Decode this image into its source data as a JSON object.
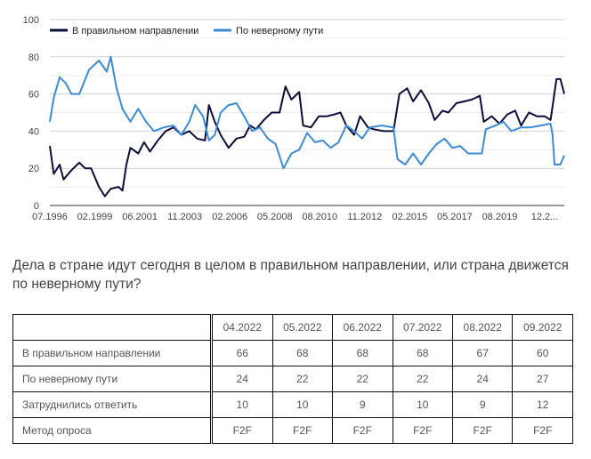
{
  "chart_data": {
    "type": "line",
    "ylim": [
      0,
      100
    ],
    "yticks": [
      "0",
      "20",
      "40",
      "60",
      "80",
      "100"
    ],
    "xtick_labels": [
      "07.1996",
      "02.1999",
      "06.2001",
      "11.2003",
      "02.2006",
      "05.2008",
      "08.2010",
      "11.2012",
      "02.2015",
      "05.2017",
      "08.2019",
      "12.2..."
    ],
    "xlim": [
      1996.5,
      2022.7
    ],
    "grid": true,
    "legend_position": "top-left",
    "series": [
      {
        "name": "В правильном направлении",
        "color": "#0d0d3a",
        "x": [
          1996.5,
          1996.7,
          1997,
          1997.2,
          1997.6,
          1998,
          1998.3,
          1998.6,
          1999,
          1999.3,
          1999.6,
          2000,
          2000.2,
          2000.4,
          2000.6,
          2001,
          2001.3,
          2001.6,
          2002,
          2002.4,
          2002.8,
          2003.2,
          2003.6,
          2004,
          2004.4,
          2004.6,
          2004.9,
          2005.2,
          2005.6,
          2006,
          2006.4,
          2006.7,
          2007,
          2007.4,
          2007.8,
          2008.2,
          2008.5,
          2008.8,
          2009.2,
          2009.4,
          2009.8,
          2010.2,
          2010.6,
          2011,
          2011.3,
          2011.6,
          2012,
          2012.3,
          2012.7,
          2013,
          2013.5,
          2014,
          2014.3,
          2014.7,
          2015,
          2015.4,
          2015.8,
          2016.1,
          2016.5,
          2016.8,
          2017.2,
          2017.6,
          2018,
          2018.4,
          2018.6,
          2019,
          2019.4,
          2019.8,
          2020.2,
          2020.5,
          2020.9,
          2021.3,
          2021.7,
          2022,
          2022.3,
          2022.5,
          2022.7
        ],
        "values": [
          32,
          17,
          22,
          14,
          19,
          23,
          20,
          20,
          10,
          5,
          9,
          10,
          8,
          22,
          31,
          28,
          34,
          29,
          35,
          40,
          42,
          38,
          40,
          36,
          35,
          54,
          45,
          38,
          31,
          36,
          37,
          43,
          41,
          46,
          50,
          50,
          64,
          57,
          61,
          43,
          42,
          48,
          48,
          49,
          50,
          43,
          38,
          48,
          42,
          41,
          40,
          40,
          60,
          63,
          56,
          62,
          55,
          46,
          51,
          50,
          55,
          56,
          57,
          59,
          45,
          48,
          44,
          49,
          51,
          43,
          50,
          48,
          48,
          46,
          68,
          68,
          60
        ]
      },
      {
        "name": "По неверному пути",
        "color": "#3d8bd4",
        "x": [
          1996.5,
          1996.7,
          1997,
          1997.3,
          1997.6,
          1998,
          1998.5,
          1999,
          1999.4,
          1999.6,
          1999.9,
          2000.2,
          2000.6,
          2001,
          2001.4,
          2001.8,
          2002.3,
          2002.8,
          2003.2,
          2003.6,
          2003.9,
          2004.3,
          2004.6,
          2004.9,
          2005.2,
          2005.6,
          2006,
          2006.4,
          2006.8,
          2007.2,
          2007.6,
          2008,
          2008.4,
          2008.8,
          2009.2,
          2009.6,
          2010,
          2010.4,
          2010.8,
          2011.2,
          2011.6,
          2012,
          2012.4,
          2012.8,
          2013.4,
          2014,
          2014.2,
          2014.6,
          2015,
          2015.4,
          2015.8,
          2016.2,
          2016.6,
          2017,
          2017.4,
          2017.8,
          2018.2,
          2018.5,
          2018.7,
          2019.2,
          2019.6,
          2020,
          2020.5,
          2021,
          2021.5,
          2022,
          2022.1,
          2022.2,
          2022.5,
          2022.7
        ],
        "values": [
          45,
          58,
          69,
          66,
          60,
          60,
          73,
          78,
          72,
          80,
          63,
          52,
          45,
          52,
          45,
          40,
          42,
          43,
          38,
          45,
          54,
          48,
          35,
          38,
          50,
          54,
          55,
          48,
          40,
          42,
          36,
          33,
          20,
          28,
          30,
          39,
          34,
          35,
          31,
          34,
          43,
          40,
          36,
          42,
          43,
          42,
          25,
          22,
          28,
          22,
          28,
          33,
          36,
          31,
          32,
          28,
          28,
          28,
          41,
          43,
          45,
          40,
          42,
          42,
          43,
          44,
          38,
          22,
          22,
          27
        ]
      }
    ]
  },
  "question": "Дела в стране идут сегодня в целом в правильном направлении, или страна движется по неверному пути?",
  "table": {
    "headers": [
      "",
      "04.2022",
      "05.2022",
      "06.2022",
      "07.2022",
      "08.2022",
      "09.2022"
    ],
    "rows": [
      [
        "В правильном направлении",
        "66",
        "68",
        "68",
        "68",
        "67",
        "60"
      ],
      [
        "По неверному пути",
        "24",
        "22",
        "22",
        "22",
        "24",
        "27"
      ],
      [
        "Затруднились ответить",
        "10",
        "10",
        "9",
        "10",
        "9",
        "12"
      ],
      [
        "Метод опроса",
        "F2F",
        "F2F",
        "F2F",
        "F2F",
        "F2F",
        "F2F"
      ]
    ]
  }
}
